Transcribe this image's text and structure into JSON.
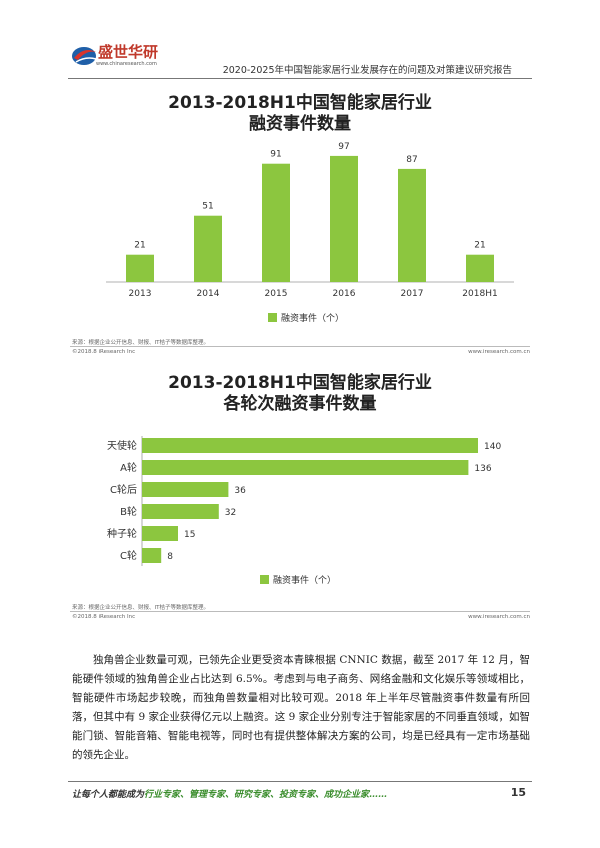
{
  "header": {
    "logo_text": "盛世华研",
    "logo_url": "www.chinaresearch.com",
    "title": "2020-2025年中国智能家居行业发展存在的问题及对策建议研究报告"
  },
  "chart_data": [
    {
      "type": "bar",
      "orientation": "vertical",
      "title_line1": "2013-2018H1中国智能家居行业",
      "title_line2": "融资事件数量",
      "categories": [
        "2013",
        "2014",
        "2015",
        "2016",
        "2017",
        "2018H1"
      ],
      "series": [
        {
          "name": "融资事件（个）",
          "values": [
            21,
            51,
            91,
            97,
            87,
            21
          ]
        }
      ],
      "ylim": [
        0,
        100
      ],
      "grid": false,
      "legend": "bottom",
      "color": "#8cc63f",
      "source": "来源：根据企业公开信息、财报、IT桔子等数据库整理。",
      "copyright": "©2018.8 iResearch Inc",
      "site": "www.iresearch.com.cn"
    },
    {
      "type": "bar",
      "orientation": "horizontal",
      "title_line1": "2013-2018H1中国智能家居行业",
      "title_line2": "各轮次融资事件数量",
      "categories": [
        "天使轮",
        "A轮",
        "C轮后",
        "B轮",
        "种子轮",
        "C轮"
      ],
      "series": [
        {
          "name": "融资事件（个）",
          "values": [
            140,
            136,
            36,
            32,
            15,
            8
          ]
        }
      ],
      "xlim": [
        0,
        150
      ],
      "grid": false,
      "legend": "bottom",
      "color": "#8cc63f",
      "source": "来源：根据企业公开信息、财报、IT桔子等数据库整理。",
      "copyright": "©2018.8 iResearch Inc",
      "site": "www.iresearch.com.cn"
    }
  ],
  "paragraph": "独角兽企业数量可观，已领先企业更受资本青睐根据 CNNIC 数据，截至 2017 年 12 月，智能硬件领域的独角兽企业占比达到 6.5%。考虑到与电子商务、网络金融和文化娱乐等领域相比，智能硬件市场起步较晚，而独角兽数量相对比较可观。2018 年上半年尽管融资事件数量有所回落，但其中有 9 家企业获得亿元以上融资。这 9 家企业分别专注于智能家居的不同垂直领域，如智能门锁、智能音箱、智能电视等，同时也有提供整体解决方案的公司，均是已经具有一定市场基础的领先企业。",
  "footer": {
    "prefix": "让每个人都能成为",
    "roles": "行业专家、管理专家、研究专家、投资专家、成功企业家……",
    "page": "15"
  }
}
